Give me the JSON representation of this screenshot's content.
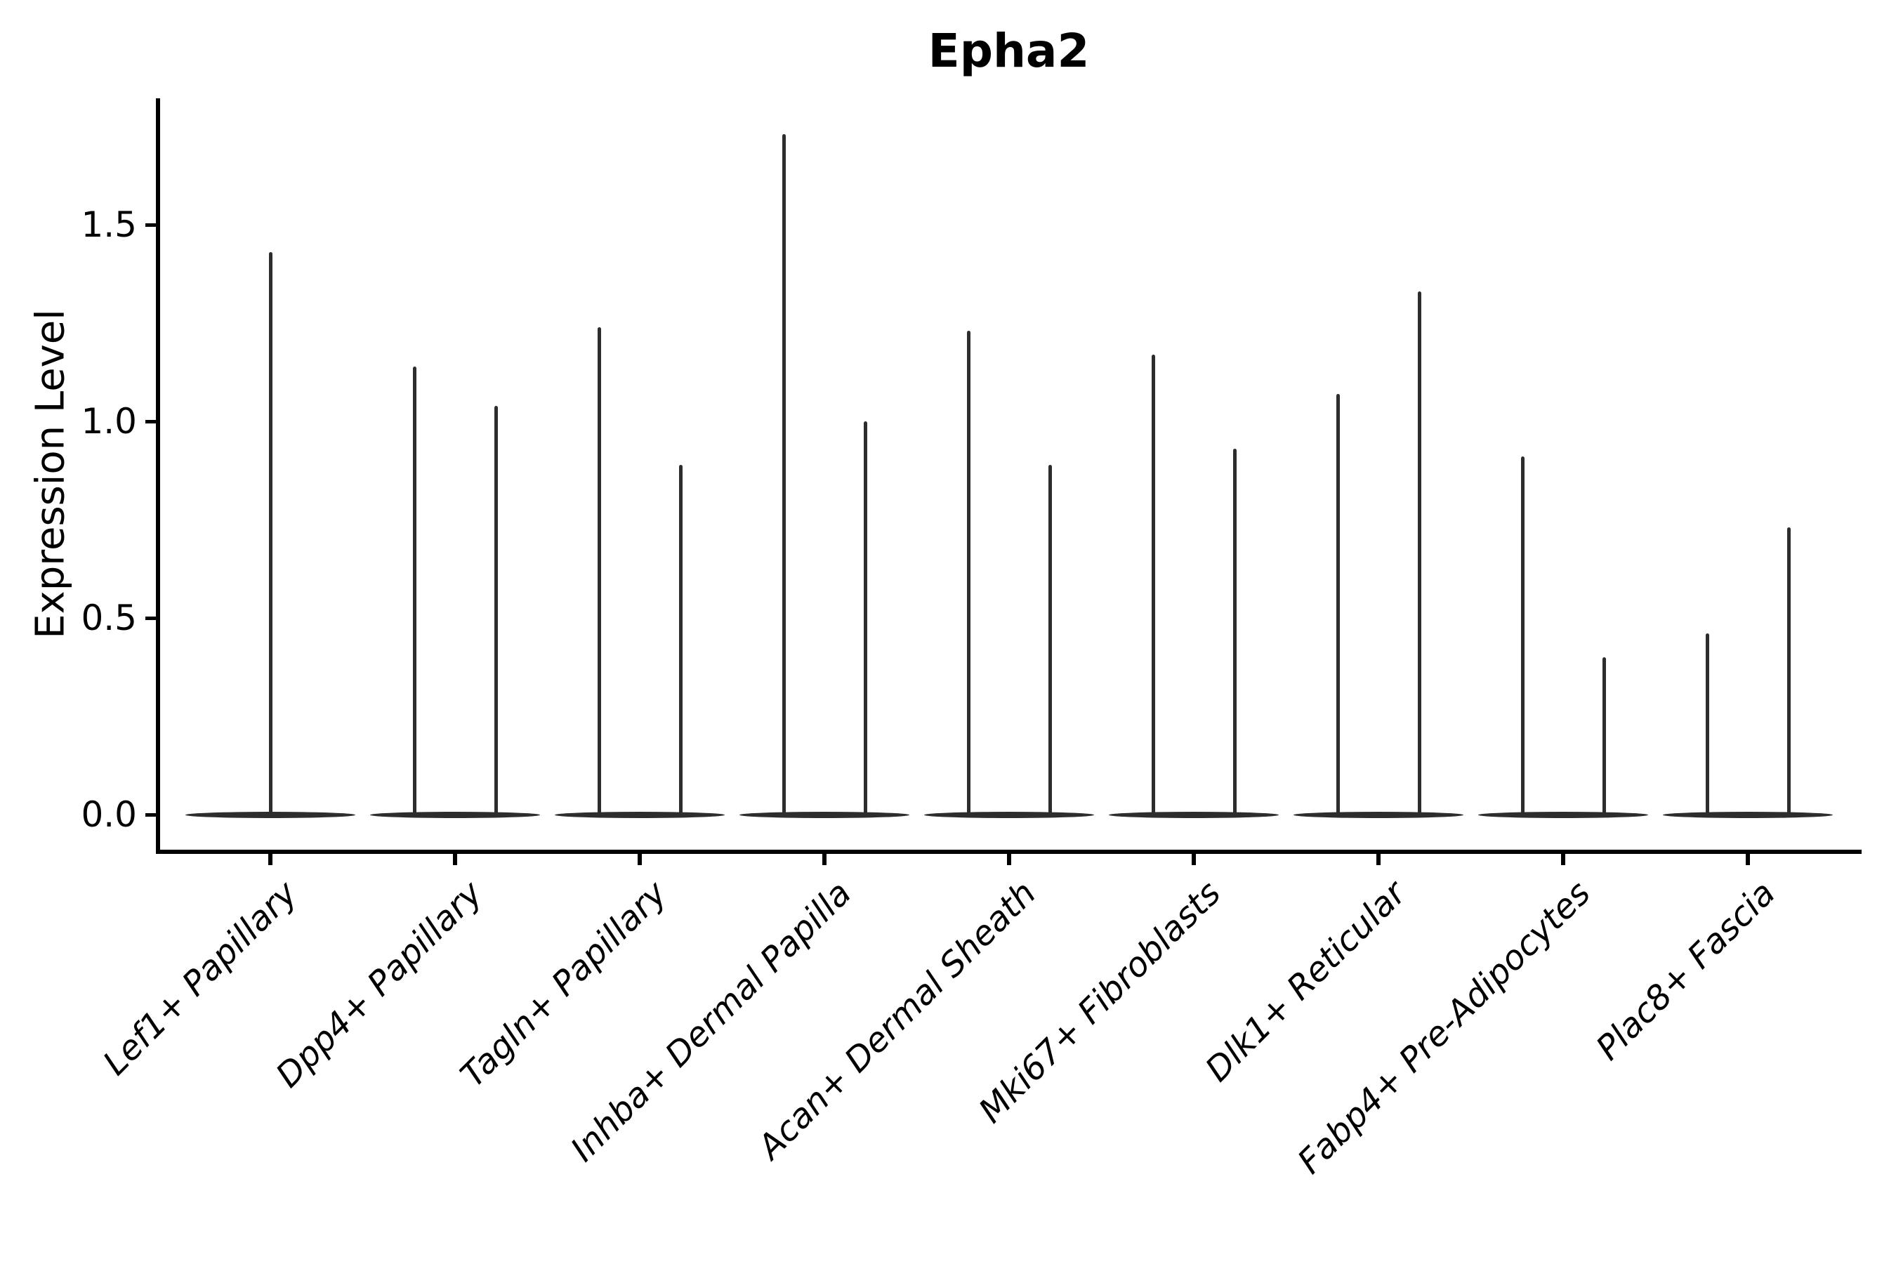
{
  "figure": {
    "background": "#ffffff",
    "violin_color": "#2d2d2d",
    "axis_color": "#000000",
    "text_color": "#000000"
  },
  "chart_data": {
    "type": "violin",
    "title": "Epha2",
    "xlabel": "",
    "ylabel": "Expression Level",
    "categories": [
      "Lef1+ Papillary",
      "Dpp4+ Papillary",
      "Tagln+ Papillary",
      "Inhba+ Dermal Papilla",
      "Acan+ Dermal Sheath",
      "Mki67+ Fibroblasts",
      "Dlk1+ Reticular",
      "Fabp4+ Pre-Adipocytes",
      "Plac8+ Fascia"
    ],
    "y_tick_labels": [
      "0.0",
      "0.5",
      "1.0",
      "1.5"
    ],
    "ylim": [
      -0.09,
      1.83
    ],
    "grid": false,
    "legend": null,
    "description": "Violin plot of Epha2 expression per fibroblast subtype; each violin is a wide flat base at 0 (bulk of cells at zero expression) with thin vertical spikes reaching the maximum expressed values.",
    "groups": [
      {
        "label": "Lef1+ Papillary",
        "baseline_value": 0,
        "spike_values": [
          1.43
        ]
      },
      {
        "label": "Dpp4+ Papillary",
        "baseline_value": 0,
        "spike_values": [
          1.14,
          1.04
        ]
      },
      {
        "label": "Tagln+ Papillary",
        "baseline_value": 0,
        "spike_values": [
          1.24,
          0.89
        ]
      },
      {
        "label": "Inhba+ Dermal Papilla",
        "baseline_value": 0,
        "spike_values": [
          1.73,
          1.0
        ]
      },
      {
        "label": "Acan+ Dermal Sheath",
        "baseline_value": 0,
        "spike_values": [
          1.23,
          0.89
        ]
      },
      {
        "label": "Mki67+ Fibroblasts",
        "baseline_value": 0,
        "spike_values": [
          1.17,
          0.93
        ]
      },
      {
        "label": "Dlk1+ Reticular",
        "baseline_value": 0,
        "spike_values": [
          1.07,
          1.33
        ]
      },
      {
        "label": "Fabp4+ Pre-Adipocytes",
        "baseline_value": 0,
        "spike_values": [
          0.91,
          0.4
        ]
      },
      {
        "label": "Plac8+ Fascia",
        "baseline_value": 0,
        "spike_values": [
          0.46,
          0.73
        ]
      }
    ]
  }
}
